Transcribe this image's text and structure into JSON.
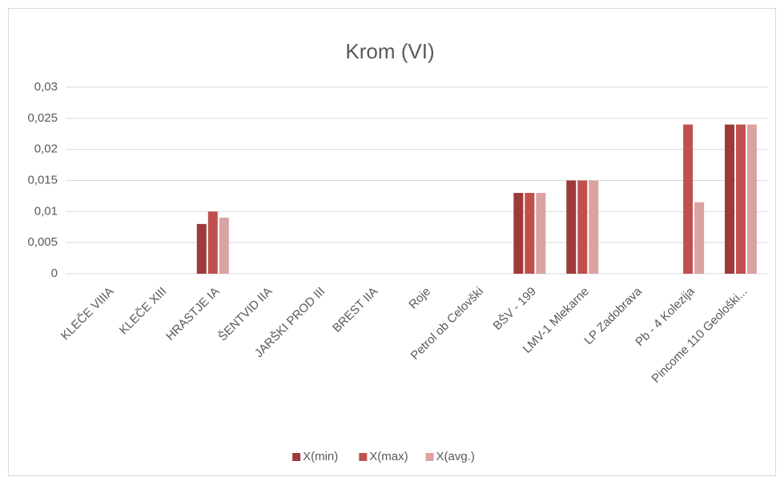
{
  "chart_data": {
    "type": "bar",
    "title": "Krom (VI)",
    "categories": [
      "KLEČE VIIIA",
      "KLEČE XIII",
      "HRASTJE IA",
      "ŠENTVID IIA",
      "JARŠKI PROD III",
      "BREST IIA",
      "Roje",
      "Petrol ob Celovški",
      "BŠV - 199",
      "LMV-1 Mlekarne",
      "LP Zadobrava",
      "Pb - 4 Kolezija",
      "Pincome 110 Geološki..."
    ],
    "series": [
      {
        "name": "X(min)",
        "color": "#9e3a38",
        "values": [
          null,
          null,
          0.008,
          null,
          null,
          null,
          null,
          null,
          0.013,
          0.015,
          null,
          null,
          0.024
        ]
      },
      {
        "name": "X(max)",
        "color": "#c0504d",
        "values": [
          null,
          null,
          0.01,
          null,
          null,
          null,
          null,
          null,
          0.013,
          0.015,
          null,
          0.024,
          0.024
        ]
      },
      {
        "name": "X(avg.)",
        "color": "#d9a3a2",
        "values": [
          null,
          null,
          0.009,
          null,
          null,
          null,
          null,
          null,
          0.013,
          0.015,
          null,
          0.0115,
          0.024
        ]
      }
    ],
    "ylim": [
      0,
      0.03
    ],
    "yticks": [
      0,
      {
        "value": 0.005,
        "label": "0,005"
      },
      {
        "value": 0.01,
        "label": "0,01"
      },
      {
        "value": 0.015,
        "label": "0,015"
      },
      {
        "value": 0.02,
        "label": "0,02"
      },
      {
        "value": 0.025,
        "label": "0,025"
      },
      {
        "value": 0.03,
        "label": "0,03"
      }
    ],
    "grid": true,
    "legend": "bottom"
  }
}
